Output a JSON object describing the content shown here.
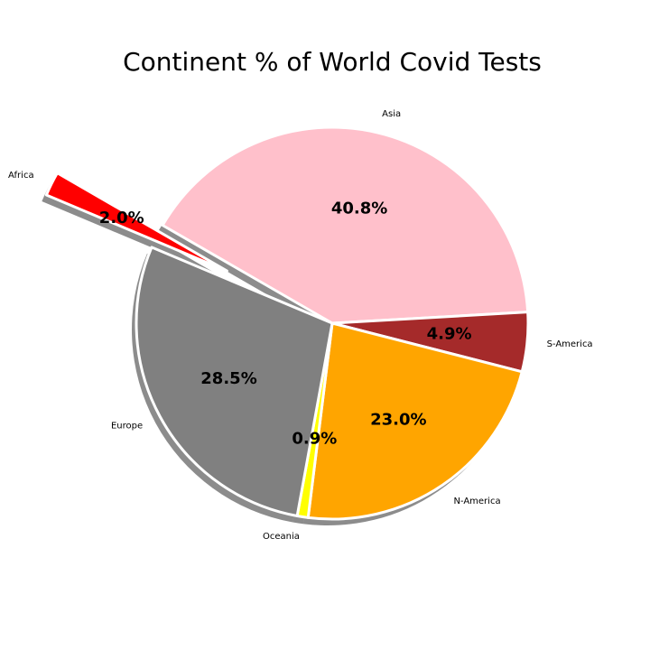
{
  "chart_data": {
    "type": "pie",
    "title": "Continent % of World Covid Tests",
    "categories": [
      "Asia",
      "S-America",
      "N-America",
      "Oceania",
      "Europe",
      "Africa"
    ],
    "values": [
      40.8,
      4.9,
      23.0,
      0.9,
      28.5,
      2.0
    ],
    "value_labels": [
      "40.8%",
      "4.9%",
      "23.0%",
      "0.9%",
      "28.5%",
      "2.0%"
    ],
    "colors": [
      "#ffc0cb",
      "#a52a2a",
      "#ffa500",
      "#ffff00",
      "#808080",
      "#ff0000"
    ],
    "exploded": "Africa",
    "shadow": true,
    "legend": "none"
  }
}
